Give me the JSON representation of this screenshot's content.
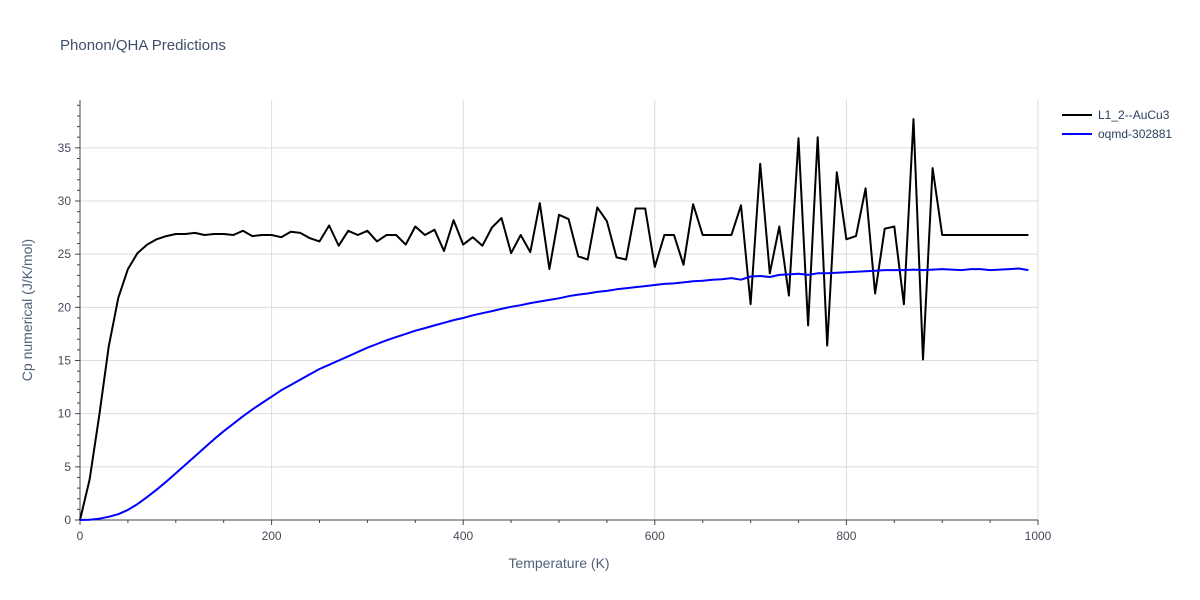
{
  "chart_data": {
    "type": "line",
    "title": "Phonon/QHA Predictions",
    "xlabel": "Temperature (K)",
    "ylabel": "Cp numerical (J/K/mol)",
    "xlim": [
      0,
      1000
    ],
    "ylim": [
      0,
      39.5
    ],
    "xticks": [
      0,
      200,
      400,
      600,
      800,
      1000
    ],
    "yticks": [
      0,
      5,
      10,
      15,
      20,
      25,
      30,
      35
    ],
    "grid": true,
    "legend_position": "top-right",
    "series": [
      {
        "name": "L1_2--AuCu3",
        "color": "#000000",
        "x": [
          0,
          10,
          20,
          30,
          40,
          50,
          60,
          70,
          80,
          90,
          100,
          110,
          120,
          130,
          140,
          150,
          160,
          170,
          180,
          190,
          200,
          210,
          220,
          230,
          240,
          250,
          260,
          270,
          280,
          290,
          300,
          310,
          320,
          330,
          340,
          350,
          360,
          370,
          380,
          390,
          400,
          410,
          420,
          430,
          440,
          450,
          460,
          470,
          480,
          490,
          500,
          510,
          520,
          530,
          540,
          550,
          560,
          570,
          580,
          590,
          600,
          610,
          620,
          630,
          640,
          650,
          660,
          670,
          680,
          690,
          700,
          710,
          720,
          730,
          740,
          750,
          760,
          770,
          780,
          790,
          800,
          810,
          820,
          830,
          840,
          850,
          860,
          870,
          880,
          890,
          900,
          910,
          920,
          930,
          940,
          950,
          960,
          970,
          980,
          990
        ],
        "y": [
          0,
          3.8,
          9.8,
          16.3,
          20.9,
          23.6,
          25.1,
          25.9,
          26.4,
          26.7,
          26.9,
          26.9,
          27.0,
          26.8,
          26.9,
          26.9,
          26.8,
          27.2,
          26.7,
          26.8,
          26.8,
          26.6,
          27.1,
          27.0,
          26.5,
          26.2,
          27.7,
          25.8,
          27.2,
          26.8,
          27.2,
          26.2,
          26.8,
          26.8,
          25.9,
          27.6,
          26.8,
          27.3,
          25.3,
          28.2,
          25.9,
          26.6,
          25.8,
          27.5,
          28.4,
          25.1,
          26.8,
          25.2,
          29.8,
          23.6,
          28.7,
          28.3,
          24.8,
          24.5,
          29.4,
          28.1,
          24.7,
          24.5,
          29.3,
          29.3,
          23.8,
          26.8,
          26.8,
          24.0,
          29.7,
          26.8,
          26.8,
          26.8,
          26.8,
          29.6,
          20.3,
          33.5,
          23.2,
          27.6,
          21.1,
          35.9,
          18.3,
          36.0,
          16.4,
          32.7,
          26.4,
          26.7,
          31.2,
          21.3,
          27.4,
          27.6,
          20.3,
          37.7,
          15.1,
          33.1,
          26.8,
          26.8,
          26.8,
          26.8,
          26.8,
          26.8,
          26.8,
          26.8,
          26.8,
          26.8
        ]
      },
      {
        "name": "oqmd-302881",
        "color": "#0000ff",
        "x": [
          0,
          10,
          20,
          30,
          40,
          50,
          60,
          70,
          80,
          90,
          100,
          110,
          120,
          130,
          140,
          150,
          160,
          170,
          180,
          190,
          200,
          210,
          220,
          230,
          240,
          250,
          260,
          270,
          280,
          290,
          300,
          310,
          320,
          330,
          340,
          350,
          360,
          370,
          380,
          390,
          400,
          410,
          420,
          430,
          440,
          450,
          460,
          470,
          480,
          490,
          500,
          510,
          520,
          530,
          540,
          550,
          560,
          570,
          580,
          590,
          600,
          610,
          620,
          630,
          640,
          650,
          660,
          670,
          680,
          690,
          700,
          710,
          720,
          730,
          740,
          750,
          760,
          770,
          780,
          790,
          800,
          810,
          820,
          830,
          840,
          850,
          860,
          870,
          880,
          890,
          900,
          910,
          920,
          930,
          940,
          950,
          960,
          970,
          980,
          990
        ],
        "y": [
          0,
          0.03,
          0.12,
          0.3,
          0.55,
          0.95,
          1.5,
          2.15,
          2.85,
          3.6,
          4.4,
          5.2,
          6.0,
          6.8,
          7.6,
          8.35,
          9.05,
          9.75,
          10.4,
          11.0,
          11.6,
          12.2,
          12.7,
          13.2,
          13.7,
          14.2,
          14.6,
          15.0,
          15.4,
          15.8,
          16.2,
          16.55,
          16.9,
          17.2,
          17.5,
          17.8,
          18.05,
          18.3,
          18.55,
          18.8,
          19.0,
          19.25,
          19.45,
          19.65,
          19.85,
          20.05,
          20.2,
          20.4,
          20.55,
          20.7,
          20.85,
          21.05,
          21.2,
          21.3,
          21.45,
          21.55,
          21.7,
          21.8,
          21.9,
          22.0,
          22.1,
          22.2,
          22.25,
          22.35,
          22.45,
          22.5,
          22.6,
          22.65,
          22.75,
          22.6,
          22.9,
          22.95,
          22.85,
          23.05,
          23.1,
          23.15,
          23.05,
          23.2,
          23.2,
          23.25,
          23.3,
          23.35,
          23.4,
          23.45,
          23.5,
          23.5,
          23.5,
          23.55,
          23.5,
          23.55,
          23.6,
          23.55,
          23.5,
          23.6,
          23.6,
          23.5,
          23.55,
          23.6,
          23.65,
          23.5
        ]
      }
    ]
  }
}
